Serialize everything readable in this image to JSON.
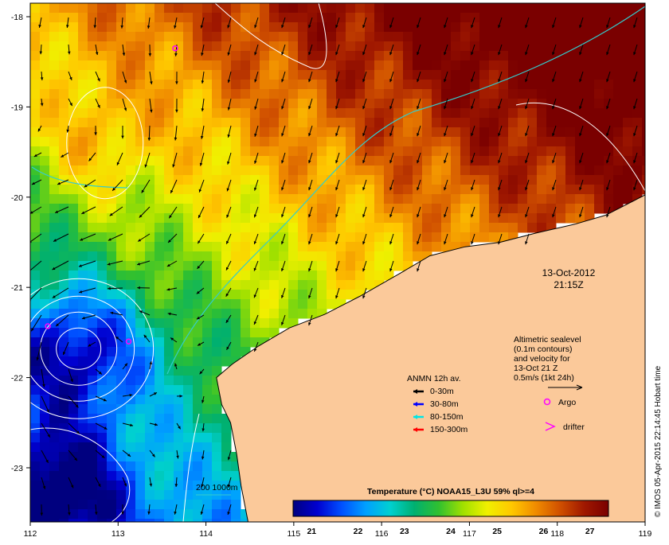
{
  "map": {
    "lon_ticks": [
      "112",
      "113",
      "114",
      "115",
      "116",
      "117",
      "118",
      "119"
    ],
    "lat_ticks": [
      "-18",
      "-19",
      "-20",
      "-21",
      "-22",
      "-23"
    ],
    "lon_range": [
      112,
      119
    ],
    "lat_range": [
      -23.6,
      -17.85
    ]
  },
  "timestamp": {
    "date": "13-Oct-2012",
    "time": "21:15Z"
  },
  "altimetry_note": {
    "lines": [
      "Altimetric sealevel",
      "(0.1m contours)",
      "and velocity for",
      "13-Oct 21 Z",
      "0.5m/s (1kt 24h)"
    ]
  },
  "legend": {
    "title": "ANMN 12h av.",
    "items": [
      {
        "label": "0-30m",
        "color": "#000000"
      },
      {
        "label": "30-80m",
        "color": "#0000ff"
      },
      {
        "label": "80-150m",
        "color": "#00e5e5"
      },
      {
        "label": "150-300m",
        "color": "#ff0000"
      }
    ],
    "argo_label": "Argo",
    "argo_color": "#ff00ff",
    "drifter_label": "drifter",
    "drifter_color": "#ff00ff"
  },
  "isobath_label": "200  1000m",
  "isobath_color": "#33cccc",
  "colorbar": {
    "title": "Temperature (°C) NOAA15_L3U 59% ql>=4",
    "ticks": [
      "21",
      "22",
      "23",
      "24",
      "25",
      "26",
      "27"
    ],
    "range": [
      20.6,
      27.4
    ],
    "colors": [
      "#00007f",
      "#0000d0",
      "#0050ff",
      "#00a0ff",
      "#00d0d0",
      "#00b070",
      "#30c030",
      "#a0e000",
      "#f0f000",
      "#ffc800",
      "#f08c00",
      "#d05000",
      "#a01800",
      "#7a0000"
    ]
  },
  "side_caption": "© IMOS 05-Apr-2015 22:14:45 Hobart time",
  "land_color": "#fbc99a"
}
